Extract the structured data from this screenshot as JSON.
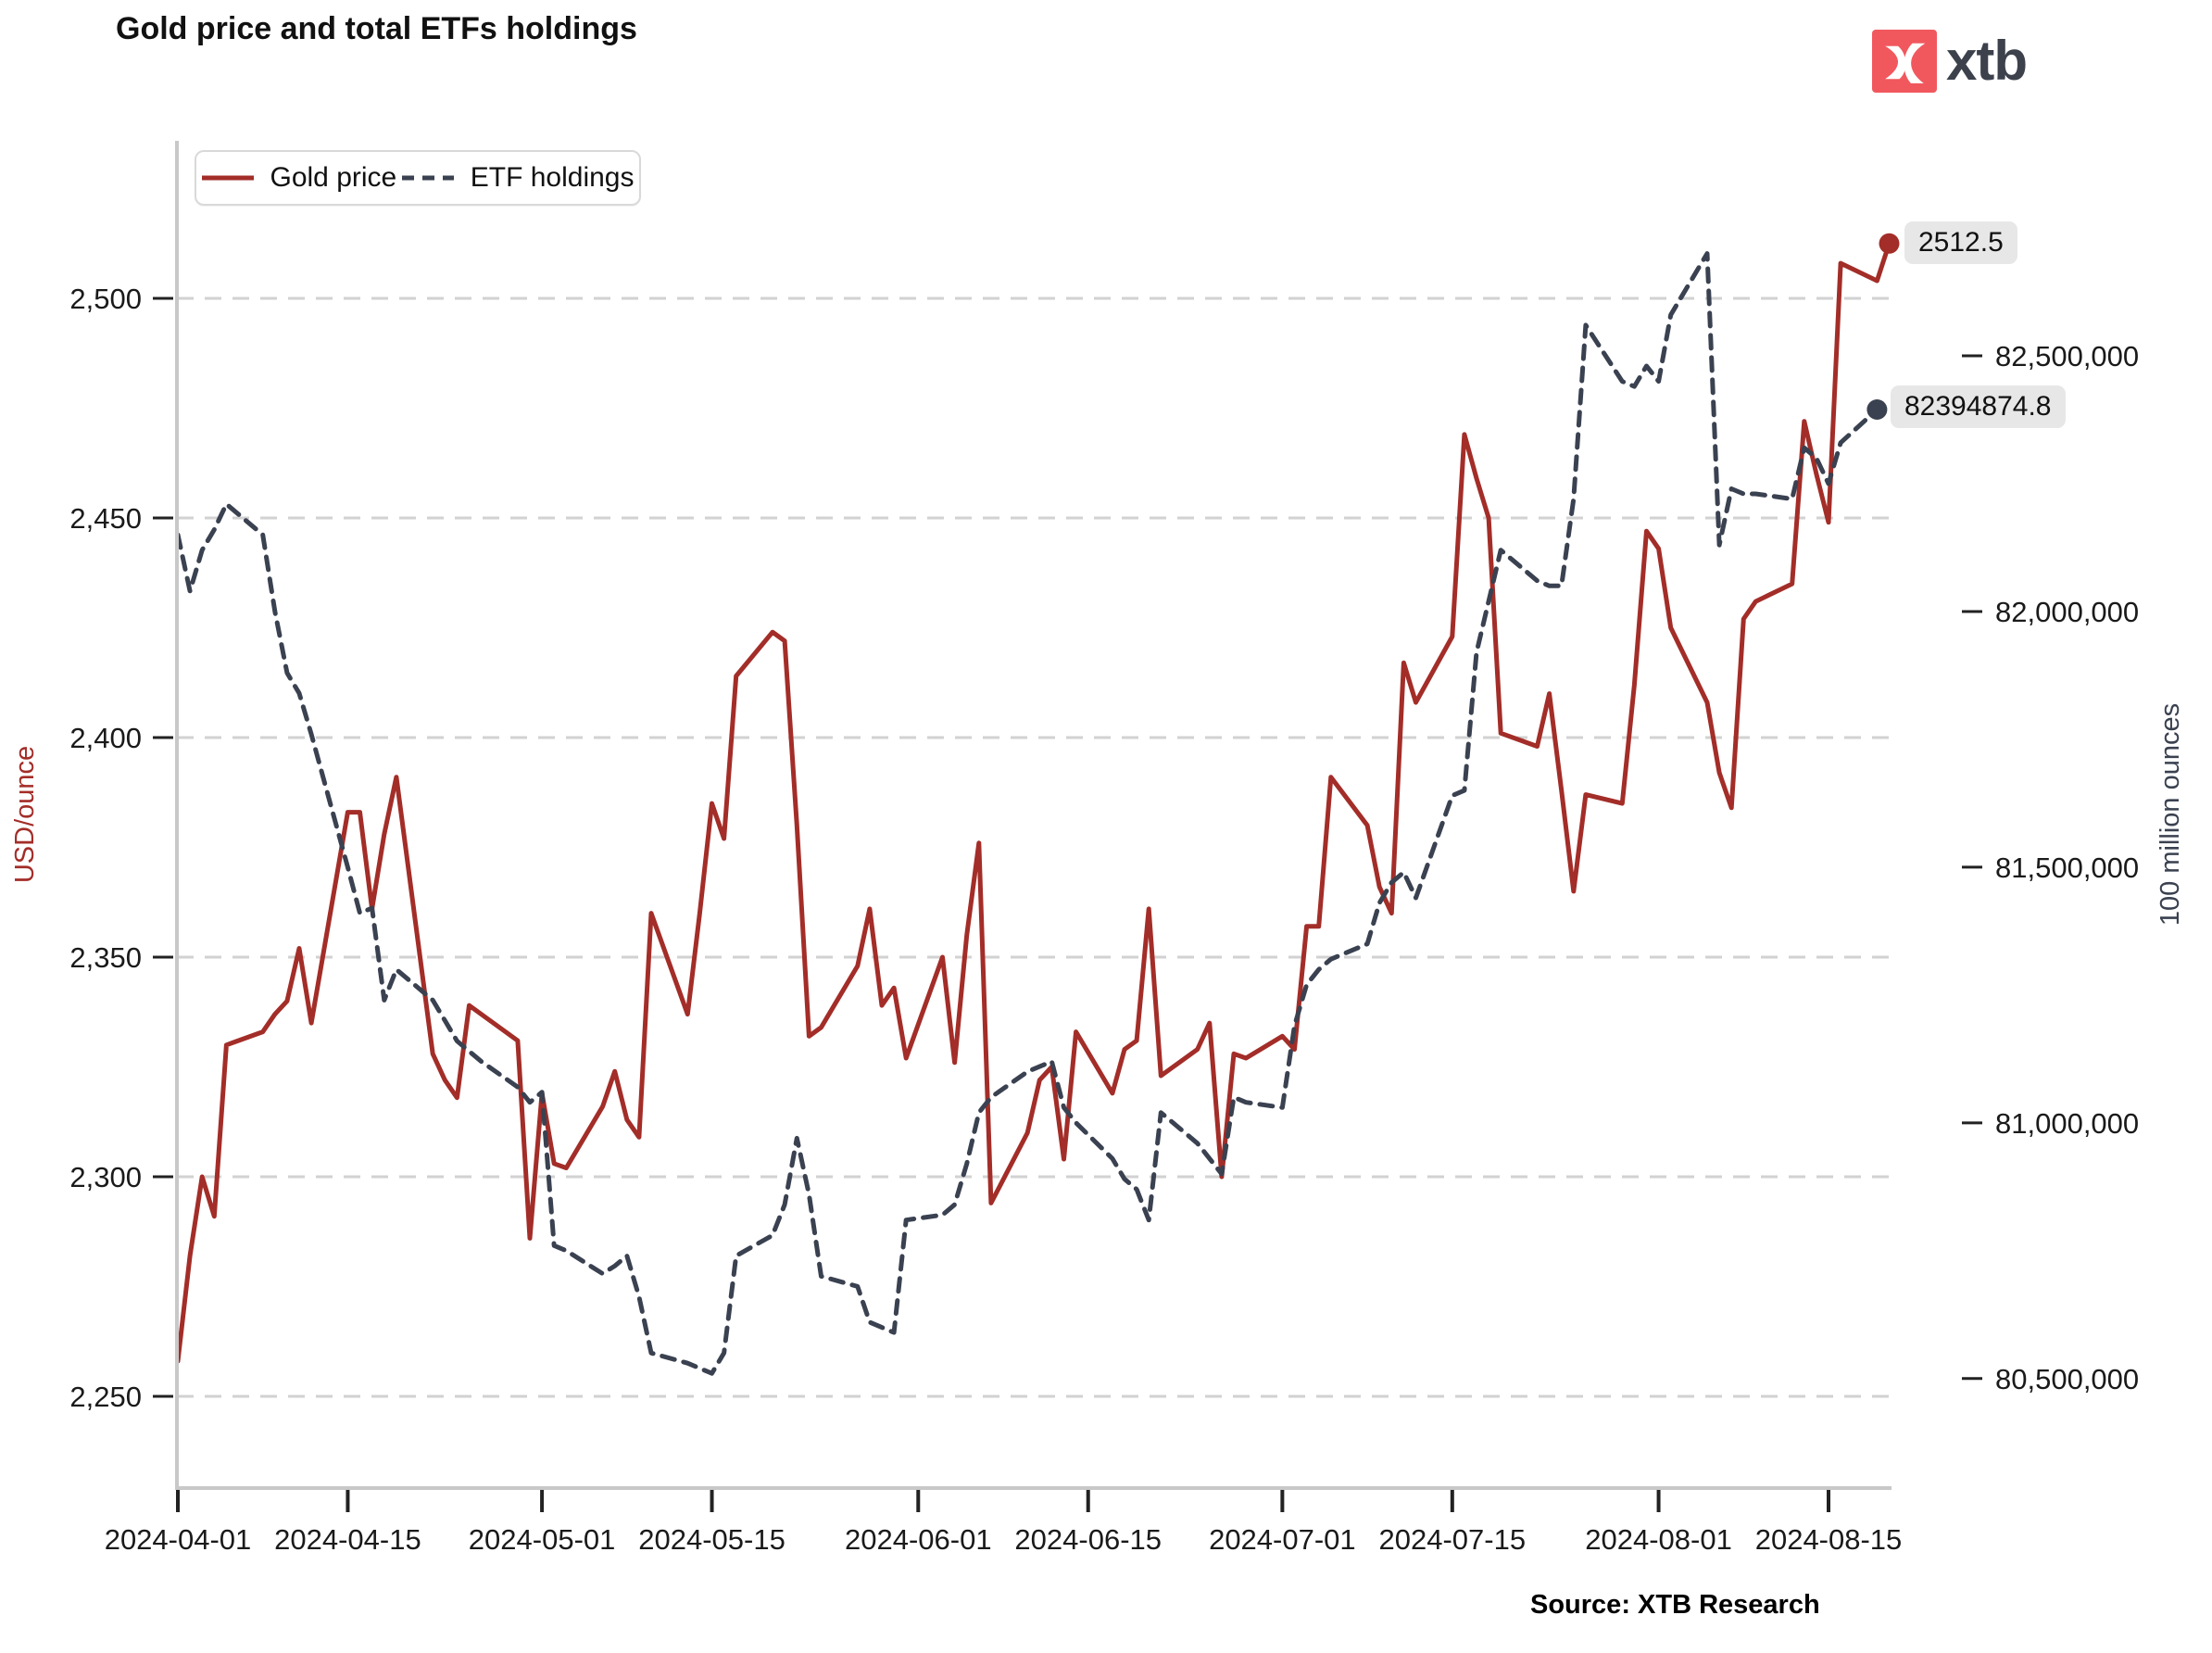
{
  "header": {
    "title": "Gold price and total ETFs holdings",
    "logo_text": "xtb",
    "logo_color": "#F1585E"
  },
  "legend": {
    "gold_label": "Gold price",
    "etf_label": "ETF holdings"
  },
  "source": "Source: XTB Research",
  "end_labels": {
    "gold": "2512.5",
    "etf": "82394874.8"
  },
  "chart_data": {
    "type": "line",
    "title": "Gold price and total ETFs holdings",
    "left_axis": {
      "label": "USD/ounce",
      "label_color": "#A32D28",
      "ticks": [
        2250,
        2300,
        2350,
        2400,
        2450,
        2500
      ],
      "tick_labels": [
        "2,250",
        "2,300",
        "2,350",
        "2,400",
        "2,450",
        "2,500"
      ],
      "range_bottom": 2229,
      "range_top": 2536
    },
    "right_axis": {
      "label": "100 million ounces",
      "label_color": "#3A4150",
      "ticks": [
        80500000,
        81000000,
        81500000,
        82000000,
        82500000
      ],
      "tick_labels": [
        "80,500,000",
        "81,000,000",
        "81,500,000",
        "82,000,000",
        "82,500,000"
      ]
    },
    "x_axis": {
      "ticks": [
        "2024-04-01",
        "2024-04-15",
        "2024-05-01",
        "2024-05-15",
        "2024-06-01",
        "2024-06-15",
        "2024-07-01",
        "2024-07-15",
        "2024-08-01",
        "2024-08-15"
      ],
      "tick_labels": [
        "2024-04-01",
        "2024-04-15",
        "2024-05-01",
        "2024-05-15",
        "2024-06-01",
        "2024-06-15",
        "2024-07-01",
        "2024-07-15",
        "2024-08-01",
        "2024-08-15"
      ]
    },
    "grid": true,
    "legend_position": "top-left",
    "series": [
      {
        "name": "Gold price",
        "axis": "left",
        "color": "#A32D28",
        "style": "solid",
        "last_value_label": "2512.5",
        "dates": [
          "2024-04-01",
          "2024-04-02",
          "2024-04-03",
          "2024-04-04",
          "2024-04-05",
          "2024-04-08",
          "2024-04-09",
          "2024-04-10",
          "2024-04-11",
          "2024-04-12",
          "2024-04-15",
          "2024-04-16",
          "2024-04-17",
          "2024-04-18",
          "2024-04-19",
          "2024-04-22",
          "2024-04-23",
          "2024-04-24",
          "2024-04-25",
          "2024-04-26",
          "2024-04-29",
          "2024-04-30",
          "2024-05-01",
          "2024-05-02",
          "2024-05-03",
          "2024-05-06",
          "2024-05-07",
          "2024-05-08",
          "2024-05-09",
          "2024-05-10",
          "2024-05-13",
          "2024-05-14",
          "2024-05-15",
          "2024-05-16",
          "2024-05-17",
          "2024-05-20",
          "2024-05-21",
          "2024-05-22",
          "2024-05-23",
          "2024-05-24",
          "2024-05-27",
          "2024-05-28",
          "2024-05-29",
          "2024-05-30",
          "2024-05-31",
          "2024-06-03",
          "2024-06-04",
          "2024-06-05",
          "2024-06-06",
          "2024-06-07",
          "2024-06-10",
          "2024-06-11",
          "2024-06-12",
          "2024-06-13",
          "2024-06-14",
          "2024-06-17",
          "2024-06-18",
          "2024-06-19",
          "2024-06-20",
          "2024-06-21",
          "2024-06-24",
          "2024-06-25",
          "2024-06-26",
          "2024-06-27",
          "2024-06-28",
          "2024-07-01",
          "2024-07-02",
          "2024-07-03",
          "2024-07-04",
          "2024-07-05",
          "2024-07-08",
          "2024-07-09",
          "2024-07-10",
          "2024-07-11",
          "2024-07-12",
          "2024-07-15",
          "2024-07-16",
          "2024-07-17",
          "2024-07-18",
          "2024-07-19",
          "2024-07-22",
          "2024-07-23",
          "2024-07-24",
          "2024-07-25",
          "2024-07-26",
          "2024-07-29",
          "2024-07-30",
          "2024-07-31",
          "2024-08-01",
          "2024-08-02",
          "2024-08-05",
          "2024-08-06",
          "2024-08-07",
          "2024-08-08",
          "2024-08-09",
          "2024-08-12",
          "2024-08-13",
          "2024-08-14",
          "2024-08-15",
          "2024-08-16",
          "2024-08-19",
          "2024-08-20"
        ],
        "values": [
          2258,
          2282,
          2300,
          2291,
          2330,
          2333,
          2337,
          2340,
          2352,
          2335,
          2383,
          2383,
          2361,
          2378,
          2391,
          2328,
          2322,
          2318,
          2339,
          2337,
          2331,
          2286,
          2319,
          2303,
          2302,
          2316,
          2324,
          2313,
          2309,
          2360,
          2337,
          2360,
          2385,
          2377,
          2414,
          2424,
          2422,
          2380,
          2332,
          2334,
          2348,
          2361,
          2339,
          2343,
          2327,
          2350,
          2326,
          2355,
          2376,
          2294,
          2310,
          2322,
          2325,
          2304,
          2333,
          2319,
          2329,
          2331,
          2361,
          2323,
          2329,
          2335,
          2300,
          2328,
          2327,
          2332,
          2329,
          2357,
          2357,
          2391,
          2380,
          2366,
          2360,
          2417,
          2408,
          2423,
          2469,
          2459,
          2450,
          2401,
          2398,
          2410,
          2388,
          2365,
          2387,
          2385,
          2412,
          2447,
          2443,
          2425,
          2408,
          2392,
          2384,
          2427,
          2431,
          2435,
          2472,
          2460,
          2449,
          2508,
          2504,
          2512.5
        ]
      },
      {
        "name": "ETF holdings",
        "axis": "right",
        "color": "#3A4150",
        "style": "dashed",
        "last_value_label": "82394874.8",
        "dates": [
          "2024-04-01",
          "2024-04-02",
          "2024-04-03",
          "2024-04-04",
          "2024-04-05",
          "2024-04-08",
          "2024-04-09",
          "2024-04-10",
          "2024-04-11",
          "2024-04-12",
          "2024-04-15",
          "2024-04-16",
          "2024-04-17",
          "2024-04-18",
          "2024-04-19",
          "2024-04-22",
          "2024-04-23",
          "2024-04-24",
          "2024-04-25",
          "2024-04-26",
          "2024-04-29",
          "2024-04-30",
          "2024-05-01",
          "2024-05-02",
          "2024-05-03",
          "2024-05-06",
          "2024-05-07",
          "2024-05-08",
          "2024-05-09",
          "2024-05-10",
          "2024-05-13",
          "2024-05-14",
          "2024-05-15",
          "2024-05-16",
          "2024-05-17",
          "2024-05-20",
          "2024-05-21",
          "2024-05-22",
          "2024-05-23",
          "2024-05-24",
          "2024-05-27",
          "2024-05-28",
          "2024-05-29",
          "2024-05-30",
          "2024-05-31",
          "2024-06-03",
          "2024-06-04",
          "2024-06-05",
          "2024-06-06",
          "2024-06-07",
          "2024-06-10",
          "2024-06-11",
          "2024-06-12",
          "2024-06-13",
          "2024-06-14",
          "2024-06-17",
          "2024-06-18",
          "2024-06-19",
          "2024-06-20",
          "2024-06-21",
          "2024-06-24",
          "2024-06-25",
          "2024-06-26",
          "2024-06-27",
          "2024-06-28",
          "2024-07-01",
          "2024-07-02",
          "2024-07-03",
          "2024-07-04",
          "2024-07-05",
          "2024-07-08",
          "2024-07-09",
          "2024-07-10",
          "2024-07-11",
          "2024-07-12",
          "2024-07-15",
          "2024-07-16",
          "2024-07-17",
          "2024-07-18",
          "2024-07-19",
          "2024-07-22",
          "2024-07-23",
          "2024-07-24",
          "2024-07-25",
          "2024-07-26",
          "2024-07-29",
          "2024-07-30",
          "2024-07-31",
          "2024-08-01",
          "2024-08-02",
          "2024-08-05",
          "2024-08-06",
          "2024-08-07",
          "2024-08-08",
          "2024-08-09",
          "2024-08-12",
          "2024-08-13",
          "2024-08-14",
          "2024-08-15",
          "2024-08-16",
          "2024-08-19"
        ],
        "values": [
          82150000,
          82040000,
          82120000,
          82160000,
          82210000,
          82150000,
          82000000,
          81880000,
          81840000,
          81760000,
          81500000,
          81410000,
          81420000,
          81240000,
          81300000,
          81240000,
          81200000,
          81160000,
          81140000,
          81120000,
          81070000,
          81040000,
          81060000,
          80760000,
          80750000,
          80705000,
          80720000,
          80740000,
          80660000,
          80550000,
          80530000,
          80520000,
          80510000,
          80550000,
          80740000,
          80780000,
          80840000,
          80970000,
          80860000,
          80700000,
          80680000,
          80610000,
          80600000,
          80590000,
          80810000,
          80820000,
          80840000,
          80920000,
          81020000,
          81050000,
          81100000,
          81110000,
          81120000,
          81030000,
          81000000,
          80930000,
          80890000,
          80870000,
          80810000,
          81020000,
          80960000,
          80930000,
          80900000,
          81050000,
          81040000,
          81030000,
          81190000,
          81270000,
          81300000,
          81320000,
          81350000,
          81430000,
          81470000,
          81490000,
          81440000,
          81640000,
          81650000,
          81920000,
          82020000,
          82120000,
          82060000,
          82050000,
          82050000,
          82220000,
          82560000,
          82450000,
          82440000,
          82480000,
          82450000,
          82580000,
          82700000,
          82130000,
          82240000,
          82230000,
          82230000,
          82220000,
          82320000,
          82300000,
          82250000,
          82330000,
          82394874.8
        ]
      }
    ]
  }
}
